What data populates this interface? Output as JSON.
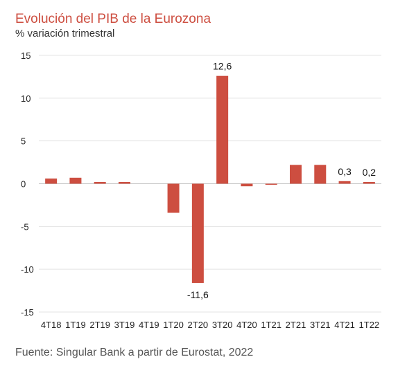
{
  "chart_data": {
    "type": "bar",
    "title": "Evolución del PIB de la Eurozona",
    "subtitle": "% variación trimestral",
    "source": "Fuente: Singular Bank a partir de Eurostat, 2022",
    "categories": [
      "4T18",
      "1T19",
      "2T19",
      "3T19",
      "4T19",
      "1T20",
      "2T20",
      "3T20",
      "4T20",
      "1T21",
      "2T21",
      "3T21",
      "4T21",
      "1T22"
    ],
    "values": [
      0.6,
      0.7,
      0.2,
      0.2,
      0.0,
      -3.4,
      -11.6,
      12.6,
      -0.3,
      -0.1,
      2.2,
      2.2,
      0.3,
      0.2
    ],
    "data_labels": [
      {
        "index": 6,
        "text": "-11,6"
      },
      {
        "index": 7,
        "text": "12,6"
      },
      {
        "index": 12,
        "text": "0,3"
      },
      {
        "index": 13,
        "text": "0,2"
      }
    ],
    "y_ticks": [
      "15",
      "10",
      "5",
      "0",
      "-5",
      "-10",
      "-15"
    ],
    "ylim": [
      -15,
      15
    ],
    "grid": true,
    "colors": {
      "bar": "#cd4e40",
      "title": "#cd4e40",
      "grid": "#e3e3e3"
    }
  }
}
